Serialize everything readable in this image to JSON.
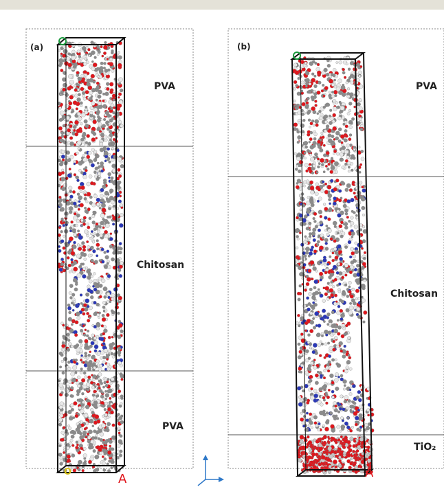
{
  "panels": [
    {
      "id": "a",
      "label": "(a)",
      "layers": [
        {
          "name": "PVA"
        },
        {
          "name": "Chitosan"
        },
        {
          "name": "PVA"
        }
      ],
      "axis_marks": {
        "top": "C",
        "bottom_left": "O",
        "bottom_right": "A"
      }
    },
    {
      "id": "b",
      "label": "(b)",
      "layers": [
        {
          "name": "PVA"
        },
        {
          "name": "Chitosan"
        },
        {
          "name": "TiO₂"
        }
      ],
      "axis_marks": {
        "top": "C",
        "bottom_right": "A"
      }
    }
  ],
  "colors": {
    "carbon": "#8c8c8c",
    "hydrogen": "#e8e8e8",
    "oxygen": "#e0161c",
    "nitrogen": "#2a37b8",
    "titanium": "#c8c8c8",
    "box": "#111111",
    "divider": "#555555",
    "axis": "#2e78c8",
    "green_mark": "#1a9a3c",
    "red_mark": "#e0161c",
    "yellow_mark": "#d7c21a"
  },
  "orientation_icon": "xyz-axes-icon"
}
